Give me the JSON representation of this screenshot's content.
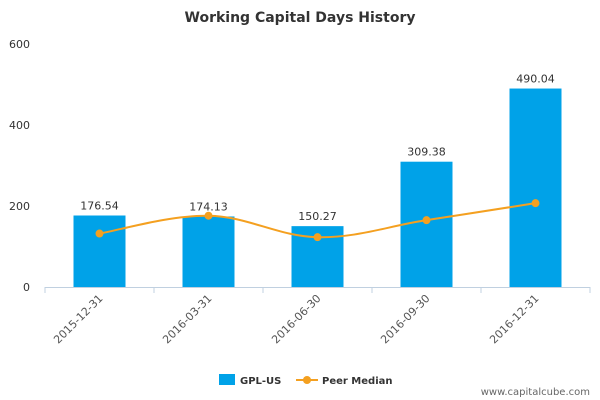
{
  "chart_data": {
    "type": "bar",
    "title": "Working Capital Days History",
    "categories": [
      "2015-12-31",
      "2016-03-31",
      "2016-06-30",
      "2016-09-30",
      "2016-12-31"
    ],
    "series": [
      {
        "name": "GPL-US",
        "kind": "bar",
        "values": [
          176.54,
          174.13,
          150.27,
          309.38,
          490.04
        ],
        "value_labels": [
          "176.54",
          "174.13",
          "150.27",
          "309.38",
          "490.04"
        ],
        "color": "#00a2e8"
      },
      {
        "name": "Peer Median",
        "kind": "line",
        "values": [
          132,
          176,
          123,
          165,
          207
        ],
        "color": "#f4a020"
      }
    ],
    "y_ticks": [
      0,
      200,
      400,
      600
    ],
    "y_tick_labels": [
      "0",
      "200",
      "400",
      "600"
    ],
    "ylim": [
      0,
      600
    ],
    "grid": false,
    "legend_position": "bottom-center"
  },
  "watermark": "www.capitalcube.com"
}
